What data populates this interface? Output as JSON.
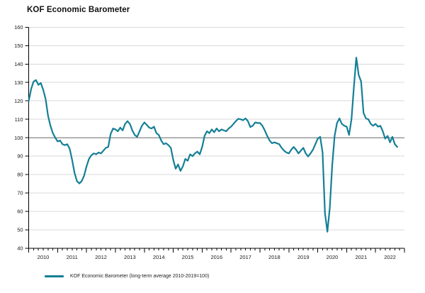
{
  "title": "KOF Economic Barometer",
  "legend": {
    "label": "KOF Economic Barometer (long-term average 2010-2019=100)"
  },
  "colors": {
    "line": "#147f96",
    "grid": "#d9d9d9",
    "grid_emphasis": "#9a9a9a",
    "axis": "#000000",
    "tick_label": "#1a1a1a"
  },
  "chart_data": {
    "type": "line",
    "title": "KOF Economic Barometer",
    "series_name": "KOF Economic Barometer (long-term average 2010-2019=100)",
    "frequency": "monthly",
    "start": "2010-01",
    "end": "2022-10",
    "ylim": [
      40,
      160
    ],
    "y_ticks": [
      40,
      50,
      60,
      70,
      80,
      90,
      100,
      110,
      120,
      130,
      140,
      150,
      160
    ],
    "x_tick_years": [
      2010,
      2011,
      2012,
      2013,
      2014,
      2015,
      2016,
      2017,
      2018,
      2019,
      2020,
      2021,
      2022
    ],
    "x_axis_total_months": 156,
    "minor_tick_every_months": 2,
    "reference_line": 100,
    "grid": "horizontal",
    "legend_position": "bottom-left",
    "values": [
      120.0,
      126.5,
      130.5,
      131.3,
      128.7,
      129.7,
      126.0,
      121.0,
      112.0,
      106.5,
      102.5,
      100.0,
      98.0,
      98.5,
      96.5,
      96.0,
      96.5,
      94.0,
      88.0,
      81.0,
      76.5,
      75.2,
      76.5,
      79.5,
      84.5,
      88.5,
      90.5,
      91.5,
      91.0,
      92.0,
      91.5,
      93.0,
      94.5,
      95.0,
      102.0,
      105.0,
      104.5,
      103.5,
      105.5,
      104.0,
      107.5,
      109.0,
      107.5,
      104.0,
      101.5,
      100.5,
      103.5,
      106.5,
      108.3,
      107.0,
      105.5,
      105.0,
      106.0,
      102.5,
      101.5,
      98.5,
      96.5,
      97.0,
      96.0,
      94.5,
      88.0,
      83.2,
      85.5,
      82.0,
      84.5,
      88.5,
      87.5,
      91.0,
      90.0,
      91.5,
      92.5,
      91.0,
      95.0,
      101.0,
      103.5,
      102.5,
      104.5,
      103.0,
      105.0,
      103.5,
      104.5,
      104.0,
      103.5,
      105.0,
      106.0,
      107.5,
      109.0,
      110.3,
      110.0,
      109.5,
      110.5,
      109.0,
      105.8,
      106.5,
      108.3,
      108.0,
      108.0,
      106.5,
      104.0,
      101.0,
      98.5,
      97.0,
      97.5,
      97.0,
      96.5,
      94.5,
      93.0,
      92.0,
      91.5,
      93.5,
      95.0,
      93.5,
      91.5,
      93.0,
      94.5,
      91.5,
      89.8,
      91.5,
      93.5,
      96.5,
      99.5,
      100.5,
      92.0,
      59.0,
      49.0,
      62.0,
      85.0,
      101.0,
      108.0,
      110.5,
      107.5,
      106.5,
      106.0,
      101.5,
      110.0,
      127.5,
      143.5,
      134.0,
      130.5,
      113.5,
      110.5,
      110.0,
      107.5,
      106.5,
      107.5,
      106.0,
      106.5,
      103.5,
      99.5,
      101.0,
      97.5,
      100.5,
      96.5,
      95.0
    ]
  }
}
